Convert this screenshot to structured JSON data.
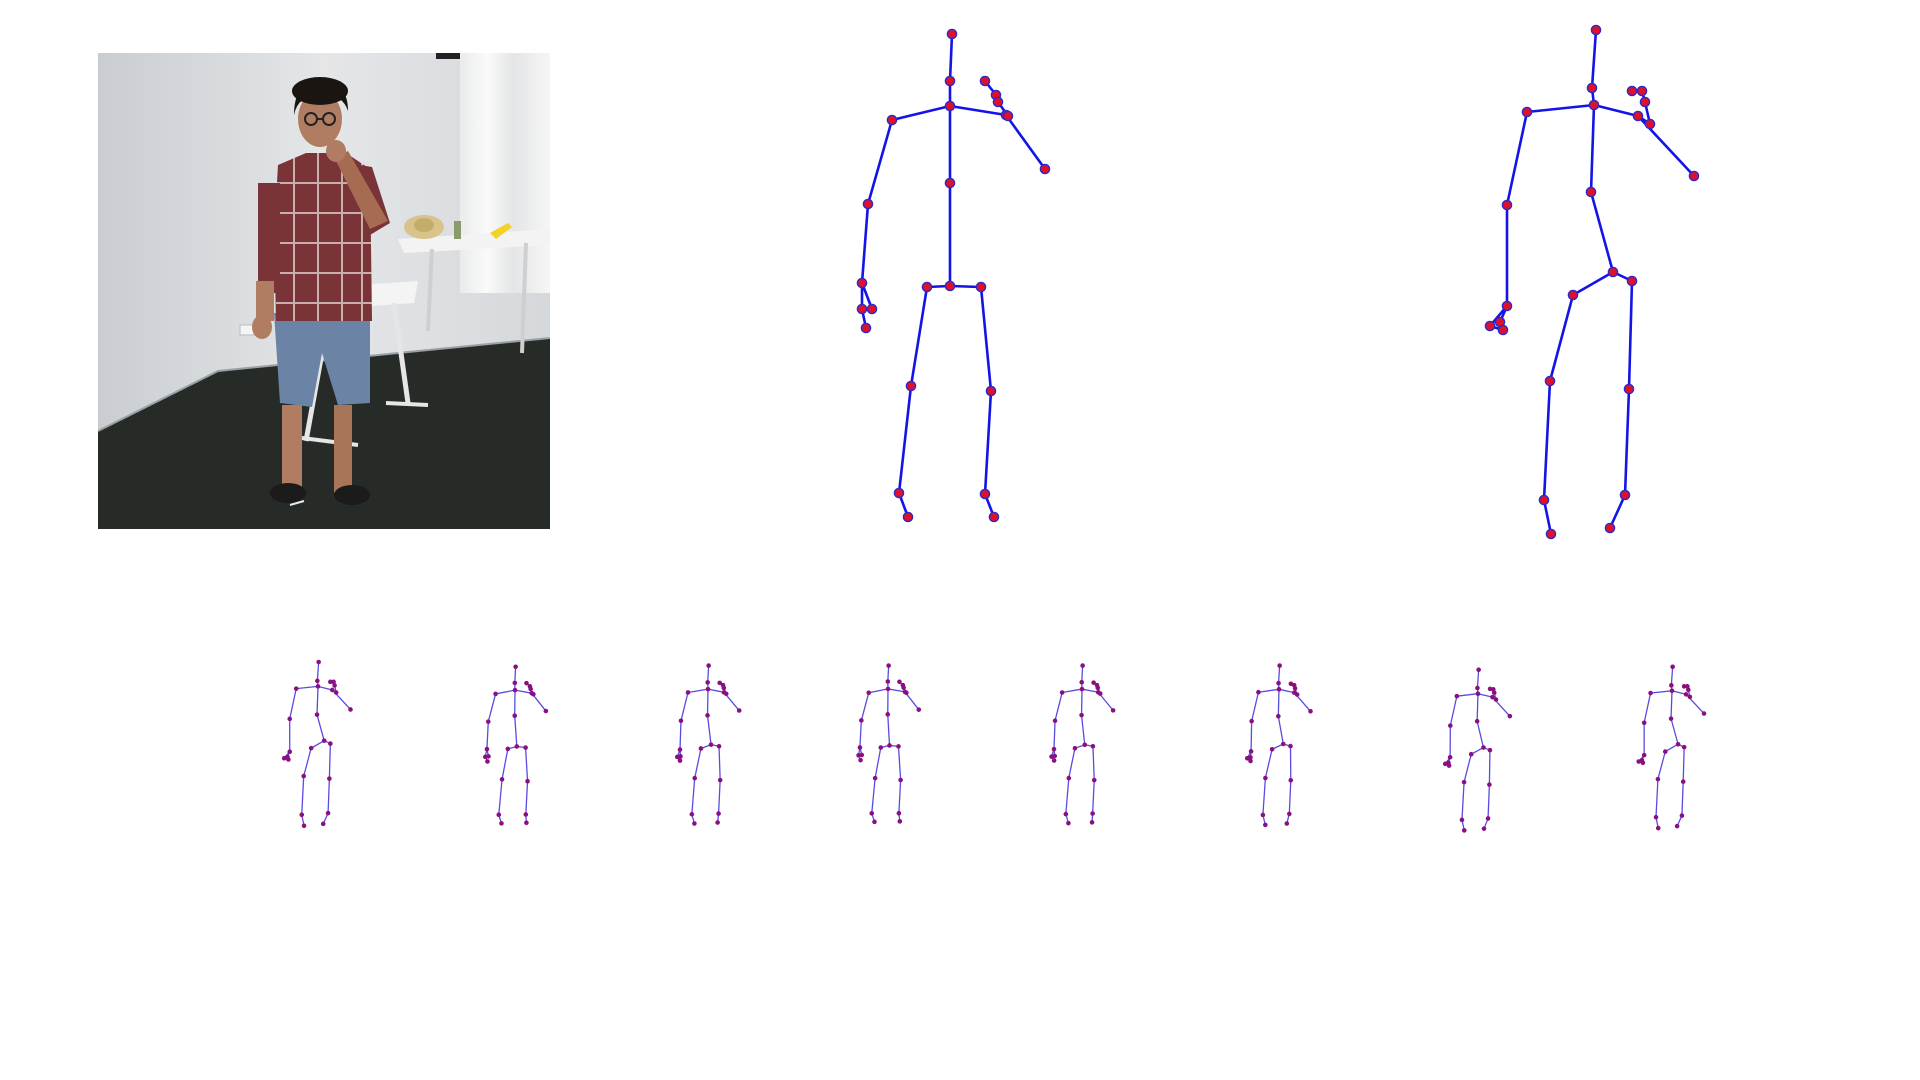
{
  "colors": {
    "bone": "#1414e6",
    "joint_fill": "#e0102a",
    "joint_stroke": "#2a2acc",
    "small_bone": "#5a4be0",
    "small_joint": "#8a1080",
    "wall": "#dcdfe2",
    "floor": "#262b28",
    "table": "#f2f2f2",
    "shirt": "#7a3438",
    "shorts": "#6b84a6",
    "skin": "#b07d62",
    "hair": "#1b1512"
  },
  "icons": {
    "photo": "person-standing-photo",
    "skeleton": "stick-figure-skeleton"
  }
}
